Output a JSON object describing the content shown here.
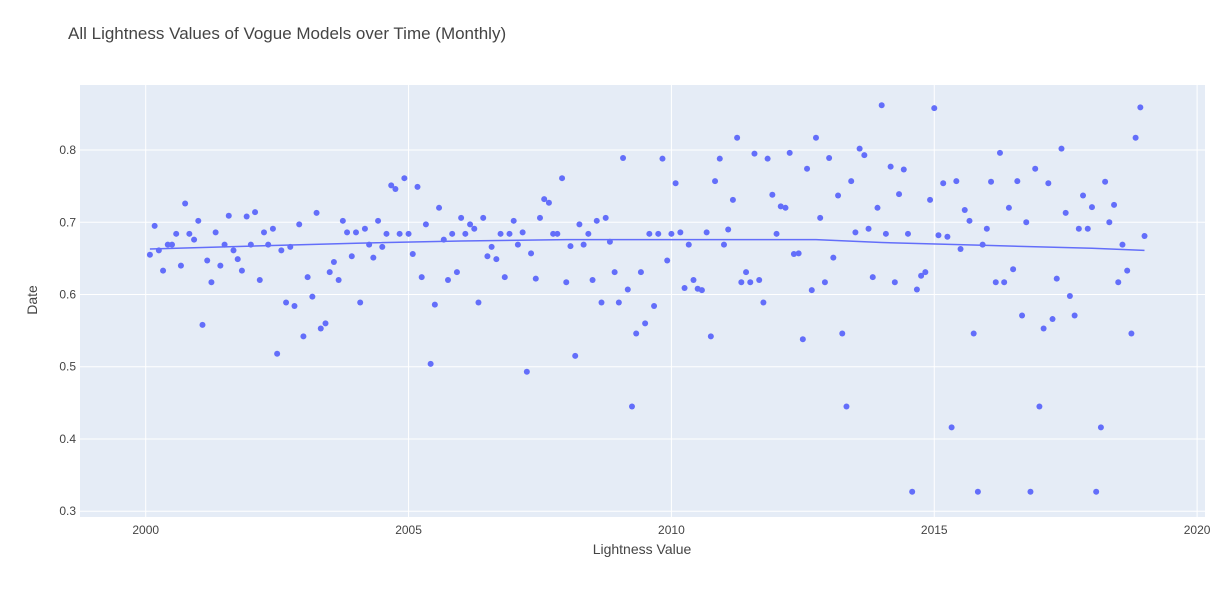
{
  "chart_data": {
    "type": "scatter",
    "title": "All Lightness Values of Vogue Models over Time (Monthly)",
    "xlabel": "Lightness Value",
    "ylabel": "Date",
    "xlim": [
      1998.75,
      2020.15
    ],
    "ylim": [
      0.292,
      0.89
    ],
    "x_ticks": [
      2000,
      2005,
      2010,
      2015,
      2020
    ],
    "y_ticks": [
      0.3,
      0.4,
      0.5,
      0.6,
      0.7,
      0.8
    ],
    "grid": true,
    "legend": "none",
    "colors": {
      "plot_bg": "#e5ecf6",
      "marker": "#636efa",
      "trend": "#636efa"
    },
    "series": [
      {
        "mode": "markers",
        "x": [
          2000.08,
          2000.17,
          2000.25,
          2000.33,
          2000.42,
          2000.5,
          2000.58,
          2000.67,
          2000.75,
          2000.83,
          2000.92,
          2001.0,
          2001.08,
          2001.17,
          2001.25,
          2001.33,
          2001.42,
          2001.5,
          2001.58,
          2001.67,
          2001.75,
          2001.83,
          2001.92,
          2002.0,
          2002.08,
          2002.17,
          2002.25,
          2002.33,
          2002.42,
          2002.5,
          2002.58,
          2002.67,
          2002.75,
          2002.83,
          2002.92,
          2003.0,
          2003.08,
          2003.17,
          2003.25,
          2003.33,
          2003.42,
          2003.5,
          2003.58,
          2003.67,
          2003.75,
          2003.83,
          2003.92,
          2004.0,
          2004.08,
          2004.17,
          2004.25,
          2004.33,
          2004.42,
          2004.5,
          2004.58,
          2004.67,
          2004.75,
          2004.83,
          2004.92,
          2005.0,
          2005.08,
          2005.17,
          2005.25,
          2005.33,
          2005.42,
          2005.5,
          2005.58,
          2005.67,
          2005.75,
          2005.83,
          2005.92,
          2006.0,
          2006.08,
          2006.17,
          2006.25,
          2006.33,
          2006.42,
          2006.5,
          2006.58,
          2006.67,
          2006.75,
          2006.83,
          2006.92,
          2007.0,
          2007.08,
          2007.17,
          2007.25,
          2007.33,
          2007.42,
          2007.5,
          2007.58,
          2007.67,
          2007.75,
          2007.83,
          2007.92,
          2008.0,
          2008.08,
          2008.17,
          2008.25,
          2008.33,
          2008.42,
          2008.5,
          2008.58,
          2008.67,
          2008.75,
          2008.83,
          2008.92,
          2009.0,
          2009.08,
          2009.17,
          2009.25,
          2009.33,
          2009.42,
          2009.5,
          2009.58,
          2009.67,
          2009.75,
          2009.83,
          2009.92,
          2010.0,
          2010.08,
          2010.17,
          2010.25,
          2010.33,
          2010.42,
          2010.5,
          2010.58,
          2010.67,
          2010.75,
          2010.83,
          2010.92,
          2011.0,
          2011.08,
          2011.17,
          2011.25,
          2011.33,
          2011.42,
          2011.5,
          2011.58,
          2011.67,
          2011.75,
          2011.83,
          2011.92,
          2012.0,
          2012.08,
          2012.17,
          2012.25,
          2012.33,
          2012.42,
          2012.5,
          2012.58,
          2012.67,
          2012.75,
          2012.83,
          2012.92,
          2013.0,
          2013.08,
          2013.17,
          2013.25,
          2013.33,
          2013.42,
          2013.5,
          2013.58,
          2013.67,
          2013.75,
          2013.83,
          2013.92,
          2014.0,
          2014.08,
          2014.17,
          2014.25,
          2014.33,
          2014.42,
          2014.5,
          2014.58,
          2014.67,
          2014.75,
          2014.83,
          2014.92,
          2015.0,
          2015.08,
          2015.17,
          2015.25,
          2015.33,
          2015.42,
          2015.5,
          2015.58,
          2015.67,
          2015.75,
          2015.83,
          2015.92,
          2016.0,
          2016.08,
          2016.17,
          2016.25,
          2016.33,
          2016.42,
          2016.5,
          2016.58,
          2016.67,
          2016.75,
          2016.83,
          2016.92,
          2017.0,
          2017.08,
          2017.17,
          2017.25,
          2017.33,
          2017.42,
          2017.5,
          2017.58,
          2017.67,
          2017.75,
          2017.83,
          2017.92,
          2018.0,
          2018.08,
          2018.17,
          2018.25,
          2018.33,
          2018.42,
          2018.5,
          2018.58,
          2018.67,
          2018.75,
          2018.83,
          2018.92,
          2019.0
        ],
        "y": [
          0.655,
          0.695,
          0.661,
          0.633,
          0.669,
          0.669,
          0.684,
          0.64,
          0.726,
          0.684,
          0.676,
          0.702,
          0.558,
          0.647,
          0.617,
          0.686,
          0.64,
          0.669,
          0.709,
          0.661,
          0.649,
          0.633,
          0.708,
          0.669,
          0.714,
          0.62,
          0.686,
          0.669,
          0.691,
          0.518,
          0.661,
          0.589,
          0.666,
          0.584,
          0.697,
          0.542,
          0.624,
          0.597,
          0.713,
          0.553,
          0.56,
          0.631,
          0.645,
          0.62,
          0.702,
          0.686,
          0.653,
          0.686,
          0.589,
          0.691,
          0.669,
          0.651,
          0.702,
          0.666,
          0.684,
          0.751,
          0.746,
          0.684,
          0.761,
          0.684,
          0.656,
          0.749,
          0.624,
          0.697,
          0.504,
          0.586,
          0.72,
          0.676,
          0.62,
          0.684,
          0.631,
          0.706,
          0.684,
          0.697,
          0.691,
          0.589,
          0.706,
          0.653,
          0.666,
          0.649,
          0.684,
          0.624,
          0.684,
          0.702,
          0.669,
          0.686,
          0.493,
          0.657,
          0.622,
          0.706,
          0.732,
          0.727,
          0.684,
          0.684,
          0.761,
          0.617,
          0.667,
          0.515,
          0.697,
          0.669,
          0.684,
          0.62,
          0.702,
          0.589,
          0.706,
          0.673,
          0.631,
          0.589,
          0.789,
          0.607,
          0.445,
          0.546,
          0.631,
          0.56,
          0.684,
          0.584,
          0.684,
          0.788,
          0.647,
          0.684,
          0.754,
          0.686,
          0.609,
          0.669,
          0.62,
          0.608,
          0.606,
          0.686,
          0.542,
          0.757,
          0.788,
          0.669,
          0.69,
          0.731,
          0.817,
          0.617,
          0.631,
          0.617,
          0.795,
          0.62,
          0.589,
          0.788,
          0.738,
          0.684,
          0.722,
          0.72,
          0.796,
          0.656,
          0.657,
          0.538,
          0.774,
          0.606,
          0.817,
          0.706,
          0.617,
          0.789,
          0.651,
          0.737,
          0.546,
          0.445,
          0.757,
          0.686,
          0.802,
          0.793,
          0.691,
          0.624,
          0.72,
          0.862,
          0.684,
          0.777,
          0.617,
          0.739,
          0.773,
          0.684,
          0.327,
          0.607,
          0.626,
          0.631,
          0.731,
          0.858,
          0.682,
          0.754,
          0.68,
          0.416,
          0.757,
          0.663,
          0.717,
          0.702,
          0.546,
          0.327,
          0.669,
          0.691,
          0.756,
          0.617,
          0.796,
          0.617,
          0.72,
          0.635,
          0.757,
          0.571,
          0.7,
          0.327,
          0.774,
          0.445,
          0.553,
          0.754,
          0.566,
          0.622,
          0.802,
          0.713,
          0.598,
          0.571,
          0.691,
          0.737,
          0.691,
          0.721,
          0.327,
          0.416,
          0.756,
          0.7,
          0.724,
          0.617,
          0.669,
          0.633,
          0.546,
          0.817,
          0.859,
          0.681
        ]
      },
      {
        "mode": "lines",
        "x": [
          2000.08,
          2002,
          2004,
          2006,
          2008,
          2010,
          2012.75,
          2014,
          2016,
          2018,
          2019
        ],
        "y": [
          0.663,
          0.667,
          0.671,
          0.674,
          0.676,
          0.676,
          0.676,
          0.672,
          0.668,
          0.664,
          0.661
        ]
      }
    ]
  }
}
